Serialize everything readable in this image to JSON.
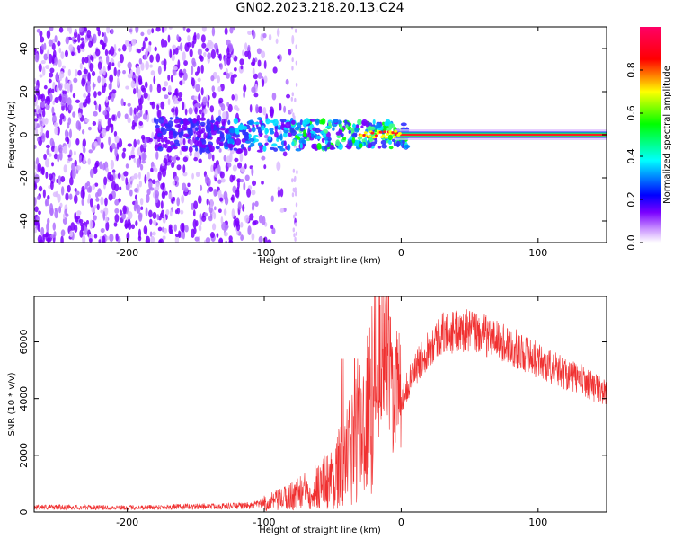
{
  "title": "GN02.2023.218.20.13.C24",
  "chart_data": [
    {
      "type": "heatmap",
      "xlabel": "Height of straight line (km)",
      "ylabel": "Frequency (Hz)",
      "xlim": [
        -268,
        150
      ],
      "ylim": [
        -50,
        50
      ],
      "x_ticks": [
        -200,
        -100,
        0,
        100
      ],
      "y_ticks": [
        -40,
        -20,
        0,
        20,
        40
      ],
      "colorbar": {
        "label": "Normalized spectral amplitude",
        "range": [
          0,
          1
        ],
        "ticks": [
          "0.0",
          "0.2",
          "0.4",
          "0.6",
          "0.8"
        ],
        "tick_values": [
          0.0,
          0.2,
          0.4,
          0.6,
          0.8
        ],
        "colormap": [
          "#ffffff",
          "#8a2be2",
          "#0000ff",
          "#00ffff",
          "#00ff00",
          "#ffff00",
          "#ff0000",
          "#ff0080"
        ]
      },
      "features": {
        "broadband_noise_x_range": [
          -268,
          -80
        ],
        "narrowband_signal_x_range": [
          -80,
          150
        ],
        "signal_center_frequency": 0
      }
    },
    {
      "type": "line",
      "xlabel": "Height of straight line (km)",
      "ylabel": "SNR (10 * v/v)",
      "xlim": [
        -268,
        150
      ],
      "ylim": [
        0,
        7600
      ],
      "x_ticks": [
        -200,
        -100,
        0,
        100
      ],
      "y_ticks": [
        0,
        2000,
        4000,
        6000
      ],
      "series": [
        {
          "color": "#f03030",
          "envelope": [
            [
              -268,
              200
            ],
            [
              -200,
              180
            ],
            [
              -150,
              220
            ],
            [
              -110,
              250
            ],
            [
              -90,
              500
            ],
            [
              -70,
              900
            ],
            [
              -50,
              1500
            ],
            [
              -35,
              2800
            ],
            [
              -25,
              4200
            ],
            [
              -15,
              5500
            ],
            [
              -5,
              4500
            ],
            [
              0,
              4000
            ],
            [
              10,
              5000
            ],
            [
              20,
              5800
            ],
            [
              30,
              6300
            ],
            [
              50,
              6400
            ],
            [
              70,
              6100
            ],
            [
              90,
              5600
            ],
            [
              110,
              5100
            ],
            [
              130,
              4700
            ],
            [
              150,
              4200
            ]
          ]
        }
      ]
    }
  ]
}
